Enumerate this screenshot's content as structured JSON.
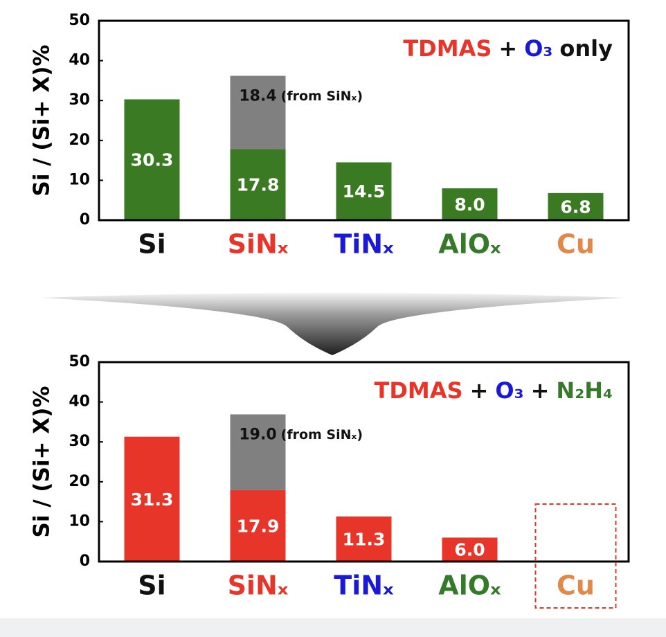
{
  "chart_data": [
    {
      "type": "bar",
      "stacked": true,
      "title_parts": [
        {
          "text": "TDMAS",
          "color": "#e8352a"
        },
        {
          "text": "+",
          "color": "#111111"
        },
        {
          "text": "O₃",
          "color": "#1a1ad6"
        },
        {
          "text": "only",
          "color": "#111111"
        }
      ],
      "y_label": "Si / (Si+ X)%",
      "categories": [
        "Si",
        "SiNₓ",
        "TiNₓ",
        "AlOₓ",
        "Cu"
      ],
      "category_colors": [
        "#111111",
        "#e8352a",
        "#1a1ad6",
        "#357a28",
        "#e0894a"
      ],
      "series": [
        {
          "color": "#3a7a22",
          "label_color": "#ffffff",
          "values": [
            30.3,
            17.8,
            14.5,
            8.0,
            6.8
          ],
          "value_labels": [
            "30.3",
            "17.8",
            "14.5",
            "8.0",
            "6.8"
          ]
        },
        {
          "color": "#808080",
          "label_color": "#111111",
          "values": [
            null,
            18.4,
            null,
            null,
            null
          ],
          "value_labels": [
            null,
            "18.4",
            null,
            null,
            null
          ]
        }
      ],
      "annotation": "(from SiNₓ)",
      "ylim": [
        0,
        50
      ],
      "yticks": [
        0,
        10,
        20,
        30,
        40,
        50
      ]
    },
    {
      "type": "bar",
      "stacked": true,
      "title_parts": [
        {
          "text": "TDMAS",
          "color": "#e8352a"
        },
        {
          "text": "+",
          "color": "#111111"
        },
        {
          "text": "O₃",
          "color": "#1a1ad6"
        },
        {
          "text": "+",
          "color": "#111111"
        },
        {
          "text": "N₂H₄",
          "color": "#357a28"
        }
      ],
      "y_label": "Si / (Si+ X)%",
      "categories": [
        "Si",
        "SiNₓ",
        "TiNₓ",
        "AlOₓ",
        "Cu"
      ],
      "category_colors": [
        "#111111",
        "#e8352a",
        "#1a1ad6",
        "#357a28",
        "#e0894a"
      ],
      "series": [
        {
          "color": "#e8352a",
          "label_color": "#ffffff",
          "values": [
            31.3,
            17.9,
            11.3,
            6.0,
            null
          ],
          "value_labels": [
            "31.3",
            "17.9",
            "11.3",
            "6.0",
            null
          ]
        },
        {
          "color": "#808080",
          "label_color": "#111111",
          "values": [
            null,
            19.0,
            null,
            null,
            null
          ],
          "value_labels": [
            null,
            "19.0",
            null,
            null,
            null
          ]
        }
      ],
      "annotation": "(from SiNₓ)",
      "highlight_index": 4,
      "ylim": [
        0,
        50
      ],
      "yticks": [
        0,
        10,
        20,
        30,
        40,
        50
      ]
    }
  ]
}
